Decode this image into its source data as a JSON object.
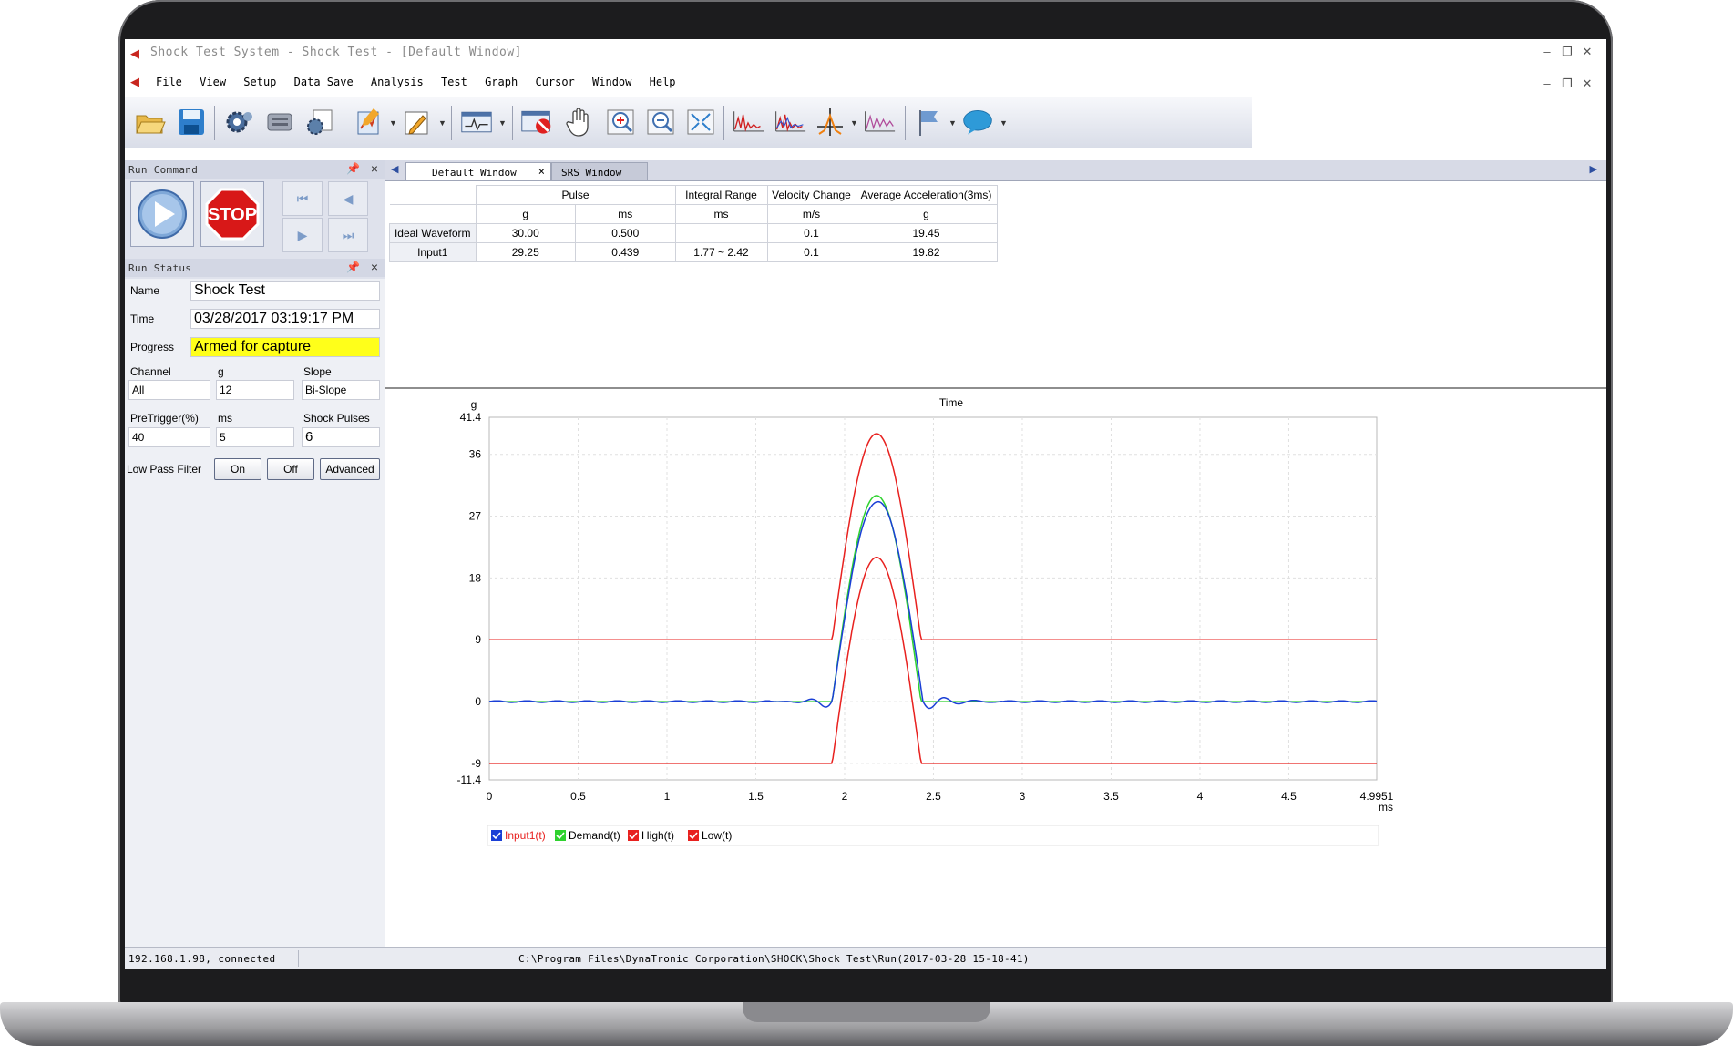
{
  "window": {
    "title": "Shock Test System - Shock Test - [Default Window]"
  },
  "menu": [
    "File",
    "View",
    "Setup",
    "Data Save",
    "Analysis",
    "Test",
    "Graph",
    "Cursor",
    "Window",
    "Help"
  ],
  "toolbar": {
    "icons": [
      "open-folder-icon",
      "save-icon",
      "settings-gear-icon",
      "hardware-icon",
      "configuration-icon",
      "edit-profile-icon",
      "pen-icon",
      "waveform-icon",
      "stop-record-icon",
      "pan-hand-icon",
      "zoom-in-icon",
      "zoom-out-icon",
      "fit-window-icon",
      "signal-icon",
      "multi-signal-icon",
      "cursor-marker-icon",
      "waveform-overlay-icon",
      "flag-icon",
      "comment-icon"
    ]
  },
  "run_command": {
    "title": "Run Command",
    "stop_label": "STOP"
  },
  "run_status": {
    "title": "Run Status",
    "name_label": "Name",
    "name_value": "Shock Test",
    "time_label": "Time",
    "time_value": "03/28/2017 03:19:17 PM",
    "progress_label": "Progress",
    "progress_value": "Armed for capture",
    "channel_label": "Channel",
    "channel_value": "All",
    "g_label": "g",
    "g_value": "12",
    "slope_label": "Slope",
    "slope_value": "Bi-Slope",
    "pretrigger_label": "PreTrigger(%)",
    "pretrigger_value": "40",
    "ms_label": "ms",
    "ms_value": "5",
    "shock_pulses_label": "Shock Pulses",
    "shock_pulses_value": "6",
    "lpf_label": "Low Pass Filter",
    "on_label": "On",
    "off_label": "Off",
    "advanced_label": "Advanced"
  },
  "tabs": [
    {
      "label": "Default Window",
      "active": true
    },
    {
      "label": "SRS Window",
      "active": false
    }
  ],
  "summary_table": {
    "headers": [
      "Pulse",
      "Integral Range",
      "Velocity Change",
      "Average Acceleration(3ms)"
    ],
    "units": [
      "g",
      "ms",
      "ms",
      "m/s",
      "g"
    ],
    "rows": [
      {
        "label": "Ideal Waveform",
        "cells": [
          "30.00",
          "0.500",
          "",
          "0.1",
          "19.45"
        ]
      },
      {
        "label": "Input1",
        "cells": [
          "29.25",
          "0.439",
          "1.77 ~ 2.42",
          "0.1",
          "19.82"
        ]
      }
    ]
  },
  "chart_data": {
    "type": "line",
    "title": "Time",
    "ylabel": "g",
    "xlabel": "ms",
    "xlim": [
      0,
      4.9951
    ],
    "ylim": [
      -11.4,
      41.4
    ],
    "x_ticks": [
      0,
      0.5,
      1,
      1.5,
      2,
      2.5,
      3,
      3.5,
      4,
      4.5,
      4.9951
    ],
    "x_tick_labels": [
      "0",
      "0.5",
      "1",
      "1.5",
      "2",
      "2.5",
      "3",
      "3.5",
      "4",
      "4.5",
      "4.9951"
    ],
    "y_ticks": [
      41.4,
      36,
      27,
      18,
      9,
      0,
      -9,
      -11.4
    ],
    "y_tick_labels": [
      "41.4",
      "36",
      "27",
      "18",
      "9",
      "0",
      "-9",
      "-11.4"
    ],
    "grid": true,
    "legend_position": "bottom-left",
    "series": [
      {
        "name": "Input1(t)",
        "color": "#1a3fd6",
        "pulse_start": 1.93,
        "pulse_end": 2.44,
        "peak": 29.2,
        "baseline": 0
      },
      {
        "name": "Demand(t)",
        "color": "#2fd22f",
        "pulse_start": 1.93,
        "pulse_end": 2.43,
        "peak": 30.0,
        "baseline": 0
      },
      {
        "name": "High(t)",
        "color": "#e8211f",
        "pulse_start": 1.93,
        "pulse_end": 2.43,
        "peak": 39.0,
        "baseline": 9
      },
      {
        "name": "Low(t)",
        "color": "#e8211f",
        "pulse_start": 1.93,
        "pulse_end": 2.43,
        "peak": 21.0,
        "baseline": -9
      }
    ]
  },
  "status_bar": {
    "connection": "192.168.1.98, connected",
    "path": "C:\\Program Files\\DynaTronic Corporation\\SHOCK\\Shock Test\\Run(2017-03-28 15-18-41)"
  }
}
